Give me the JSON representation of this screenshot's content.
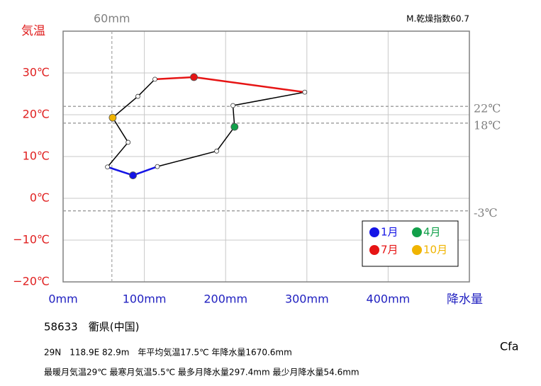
{
  "chart_data": {
    "type": "hythergraph",
    "y_axis_label": "気温",
    "x_axis_label": "降水量",
    "index_label": "M.乾燥指数60.7",
    "x": [
      86,
      116,
      189,
      211,
      209,
      297.4,
      161,
      113,
      92,
      61,
      80,
      54.6
    ],
    "y": [
      5.5,
      7.6,
      11.3,
      17.1,
      22.2,
      25.4,
      29,
      28.5,
      24.4,
      19.3,
      13.4,
      7.5
    ],
    "point_colors": [
      "#1414e6",
      "#ffffff",
      "#ffffff",
      "#12a04a",
      "#ffffff",
      "#ffffff",
      "#e61414",
      "#ffffff",
      "#ffffff",
      "#f0b400",
      "#ffffff",
      "#ffffff"
    ],
    "line_colors": [
      "#1414e6",
      "#000000",
      "#000000",
      "#000000",
      "#000000",
      "#e61414",
      "#e61414",
      "#000000",
      "#000000",
      "#000000",
      "#000000",
      "#1414e6"
    ],
    "legend": [
      {
        "name": "1月",
        "color": "#1414e6"
      },
      {
        "name": "4月",
        "color": "#12a04a"
      },
      {
        "name": "7月",
        "color": "#e61414"
      },
      {
        "name": "10月",
        "color": "#f0b400"
      }
    ],
    "xlim": [
      0,
      500
    ],
    "ylim": [
      -20,
      40
    ],
    "xticks": [
      {
        "value": 0,
        "label": "0mm"
      },
      {
        "value": 100,
        "label": "100mm"
      },
      {
        "value": 200,
        "label": "200mm"
      },
      {
        "value": 300,
        "label": "300mm"
      },
      {
        "value": 400,
        "label": "400mm"
      }
    ],
    "yticks": [
      {
        "value": -20,
        "label": "−20℃"
      },
      {
        "value": -10,
        "label": "−10℃"
      },
      {
        "value": 0,
        "label": "0℃"
      },
      {
        "value": 10,
        "label": "10℃"
      },
      {
        "value": 20,
        "label": "20℃"
      },
      {
        "value": 30,
        "label": "30℃"
      }
    ],
    "ref_lines_y": [
      {
        "value": 22,
        "label": "22℃"
      },
      {
        "value": 18,
        "label": "18℃"
      },
      {
        "value": -3,
        "label": "-3℃"
      }
    ],
    "ref_lines_x": [
      {
        "value": 60,
        "label": "60mm"
      }
    ],
    "grid": true
  },
  "info": {
    "station": "58633　衢県(中国)",
    "line1": "29N　118.9E 82.9m　年平均気温17.5℃ 年降水量1670.6mm",
    "line2": "最暖月気温29℃ 最寒月気温5.5℃ 最多月降水量297.4mm 最少月降水量54.6mm",
    "climate": "Cfa"
  }
}
